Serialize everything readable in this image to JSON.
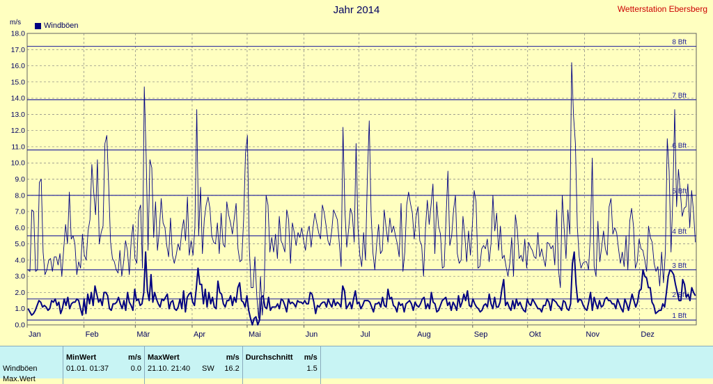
{
  "title": "Jahr 2014",
  "station": "Wetterstation Ebersberg",
  "unit_label": "m/s",
  "legend_label": "Windböen",
  "colors": {
    "background": "#ffffc0",
    "line": "#000080",
    "grid": "#808080",
    "text": "#000060",
    "station": "#cc0000",
    "stats_bg": "#c8f4f4"
  },
  "stats": {
    "headers": {
      "min": "MinWert",
      "min_unit": "m/s",
      "max": "MaxWert",
      "max_unit": "m/s",
      "avg": "Durchschnitt",
      "avg_unit": "m/s"
    },
    "rows": [
      {
        "label": "Windböen",
        "min_time": "01.01.  01:37",
        "min_val": "0.0",
        "max_time": "21.10.  21:40",
        "max_dir": "SW",
        "max_val": "16.2",
        "avg_val": "1.5"
      },
      {
        "label": "Max.Wert",
        "min_time": "",
        "min_val": "",
        "max_time": "",
        "max_dir": "",
        "max_val": "",
        "avg_val": ""
      }
    ]
  },
  "chart_data": {
    "type": "line",
    "title": "Jahr 2014",
    "ylabel": "m/s",
    "ylim": [
      0,
      18
    ],
    "yticks": [
      "0.0",
      "1.0",
      "2.0",
      "3.0",
      "4.0",
      "5.0",
      "6.0",
      "7.0",
      "8.0",
      "9.0",
      "10.0",
      "11.0",
      "12.0",
      "13.0",
      "14.0",
      "15.0",
      "16.0",
      "17.0",
      "18.0"
    ],
    "xlim": [
      0,
      365
    ],
    "x_ticks": [
      {
        "label": "Jan",
        "day": 0
      },
      {
        "label": "Feb",
        "day": 31
      },
      {
        "label": "Mär",
        "day": 59
      },
      {
        "label": "Apr",
        "day": 90
      },
      {
        "label": "Mai",
        "day": 120
      },
      {
        "label": "Jun",
        "day": 151
      },
      {
        "label": "Jul",
        "day": 181
      },
      {
        "label": "Aug",
        "day": 212
      },
      {
        "label": "Sep",
        "day": 243
      },
      {
        "label": "Okt",
        "day": 273
      },
      {
        "label": "Nov",
        "day": 304
      },
      {
        "label": "Dez",
        "day": 334
      }
    ],
    "grid": true,
    "beaufort": [
      {
        "label": "1 Bft",
        "value": 0.3
      },
      {
        "label": "2 Bft",
        "value": 1.6
      },
      {
        "label": "3 Bft",
        "value": 3.4
      },
      {
        "label": "4 Bft",
        "value": 5.5
      },
      {
        "label": "5 Bft",
        "value": 8.0
      },
      {
        "label": "6 Bft",
        "value": 10.8
      },
      {
        "label": "7 Bft",
        "value": 13.9
      },
      {
        "label": "8 Bft",
        "value": 17.2
      }
    ],
    "series": [
      {
        "name": "Windböen",
        "type": "daily_max",
        "values": [
          3.4,
          3.3,
          7.1,
          7.0,
          3.3,
          3.4,
          8.8,
          9.0,
          4.5,
          3.1,
          3.4,
          4.0,
          4.1,
          3.3,
          4.2,
          4.2,
          3.7,
          4.4,
          3.0,
          4.7,
          6.2,
          5.0,
          8.2,
          5.3,
          5.5,
          5.0,
          3.1,
          3.9,
          3.5,
          5.6,
          4.3,
          4.0,
          5.8,
          6.5,
          9.9,
          8.2,
          6.8,
          10.2,
          5.0,
          5.7,
          6.1,
          11.2,
          11.7,
          8.6,
          5.1,
          4.1,
          3.9,
          3.4,
          3.2,
          4.6,
          3.0,
          3.9,
          5.2,
          4.6,
          3.1,
          5.2,
          6.2,
          4.1,
          3.8,
          7.0,
          7.4,
          3.5,
          14.7,
          10.4,
          4.6,
          10.2,
          9.7,
          5.4,
          7.6,
          4.6,
          5.8,
          7.8,
          6.3,
          6.0,
          4.9,
          4.2,
          6.6,
          4.3,
          3.8,
          4.3,
          5.0,
          4.6,
          5.8,
          6.5,
          5.2,
          7.9,
          4.3,
          5.2,
          4.3,
          6.0,
          13.3,
          5.5,
          8.5,
          4.4,
          6.5,
          7.4,
          7.9,
          7.2,
          5.5,
          5.1,
          5.0,
          6.3,
          4.4,
          6.9,
          5.0,
          4.8,
          7.6,
          6.8,
          6.3,
          5.6,
          6.6,
          7.5,
          4.7,
          3.9,
          4.0,
          6.5,
          10.6,
          11.7,
          4.8,
          2.3,
          2.3,
          4.2,
          1.8,
          0.4,
          3.0,
          0.6,
          2.3,
          8.0,
          7.4,
          4.5,
          5.4,
          4.5,
          5.6,
          4.1,
          6.7,
          5.2,
          4.9,
          4.5,
          7.1,
          6.5,
          3.8,
          6.3,
          5.7,
          4.9,
          5.7,
          5.4,
          6.0,
          5.2,
          4.6,
          5.7,
          6.1,
          4.8,
          6.0,
          6.9,
          6.3,
          5.7,
          5.3,
          7.4,
          6.9,
          6.1,
          5.2,
          4.9,
          5.8,
          7.1,
          6.8,
          6.5,
          5.1,
          3.6,
          12.2,
          7.1,
          4.8,
          5.9,
          7.2,
          6.8,
          5.1,
          11.2,
          6.0,
          4.3,
          3.6,
          5.7,
          4.0,
          9.1,
          12.6,
          6.8,
          4.4,
          3.4,
          5.0,
          6.2,
          4.4,
          4.6,
          7.1,
          6.0,
          5.1,
          6.6,
          5.7,
          6.1,
          5.5,
          5.0,
          4.2,
          7.5,
          3.3,
          4.5,
          7.4,
          8.2,
          7.5,
          6.9,
          5.3,
          6.7,
          7.3,
          5.2,
          4.9,
          3.0,
          5.9,
          7.7,
          6.2,
          7.4,
          8.7,
          4.4,
          7.6,
          6.1,
          5.6,
          3.5,
          3.6,
          6.6,
          9.5,
          4.9,
          5.5,
          7.1,
          8.0,
          4.4,
          3.8,
          4.0,
          6.7,
          5.5,
          3.9,
          5.8,
          4.3,
          6.1,
          8.3,
          7.6,
          3.5,
          3.6,
          4.7,
          4.9,
          4.7,
          5.3,
          3.9,
          5.0,
          8.0,
          5.8,
          6.9,
          4.6,
          6.1,
          4.1,
          4.3,
          3.6,
          3.0,
          3.8,
          5.4,
          3.0,
          6.8,
          5.9,
          4.1,
          4.3,
          3.9,
          5.3,
          3.5,
          5.1,
          4.8,
          4.6,
          4.2,
          4.1,
          5.7,
          4.2,
          4.7,
          4.1,
          3.6,
          5.1,
          5.0,
          4.7,
          4.9,
          3.7,
          7.1,
          3.4,
          2.3,
          8.0,
          6.0,
          4.1,
          7.1,
          5.6,
          16.2,
          12.9,
          11.2,
          6.1,
          4.2,
          3.5,
          3.8,
          3.9,
          3.9,
          3.4,
          5.5,
          10.3,
          3.6,
          3.0,
          6.4,
          3.9,
          4.8,
          5.8,
          4.7,
          4.3,
          7.3,
          7.8,
          5.6,
          6.0,
          5.7,
          4.7,
          3.8,
          4.5,
          3.6,
          5.5,
          3.4,
          6.4,
          7.2,
          6.1,
          3.5,
          3.9,
          5.3,
          4.7,
          4.6,
          4.0,
          3.3,
          6.1,
          5.4,
          5.1,
          3.8,
          3.3,
          3.6,
          2.4,
          4.5,
          2.6,
          4.5,
          11.5,
          9.5,
          4.5,
          8.0,
          13.3,
          7.3,
          9.6,
          8.2,
          6.7,
          7.2,
          7.3,
          8.7,
          6.0,
          8.3,
          7.0,
          5.1
        ]
      },
      {
        "name": "Windböen",
        "type": "daily_mean",
        "values": [
          1.0,
          0.8,
          0.6,
          0.7,
          0.9,
          1.2,
          1.5,
          1.4,
          1.1,
          1.2,
          1.1,
          0.9,
          1.0,
          1.5,
          1.4,
          1.6,
          1.2,
          1.4,
          0.7,
          1.0,
          1.6,
          1.2,
          1.7,
          1.0,
          1.3,
          1.4,
          1.4,
          1.6,
          1.5,
          1.0,
          0.6,
          1.6,
          0.7,
          1.9,
          1.3,
          2.0,
          1.2,
          2.4,
          1.9,
          1.4,
          1.6,
          1.2,
          2.0,
          2.0,
          1.8,
          1.0,
          0.9,
          1.3,
          1.3,
          1.4,
          1.7,
          1.3,
          1.0,
          1.5,
          0.9,
          2.0,
          1.4,
          1.2,
          0.9,
          2.2,
          1.5,
          1.6,
          1.2,
          1.3,
          2.0,
          4.5,
          2.1,
          1.5,
          3.1,
          1.4,
          2.0,
          1.6,
          1.3,
          1.1,
          1.6,
          1.5,
          1.7,
          1.9,
          1.0,
          1.4,
          1.5,
          1.0,
          0.9,
          1.1,
          1.6,
          1.0,
          2.1,
          0.8,
          1.7,
          1.9,
          2.0,
          1.4,
          1.2,
          2.2,
          3.5,
          2.5,
          2.5,
          1.3,
          2.2,
          1.1,
          2.0,
          1.3,
          1.7,
          1.1,
          1.0,
          2.7,
          2.0,
          1.9,
          1.3,
          1.1,
          1.5,
          1.5,
          1.8,
          1.2,
          1.7,
          1.4,
          2.3,
          2.6,
          1.5,
          1.4,
          1.1,
          1.8,
          0.9,
          0.4,
          0.0,
          0.4,
          0.5,
          0.0,
          0.3,
          1.7,
          1.8,
          1.1,
          1.0,
          1.7,
          0.9,
          1.1,
          1.1,
          1.1,
          1.3,
          1.0,
          1.6,
          1.5,
          1.2,
          0.8,
          1.6,
          1.3,
          1.4,
          1.3,
          1.1,
          1.5,
          1.4,
          1.4,
          1.3,
          1.5,
          1.3,
          1.3,
          2.0,
          1.9,
          1.4,
          0.7,
          1.2,
          1.1,
          1.3,
          1.4,
          1.4,
          1.1,
          1.6,
          1.3,
          1.1,
          1.6,
          1.2,
          1.4,
          1.3,
          1.1,
          2.4,
          2.1,
          1.0,
          1.2,
          1.4,
          1.0,
          1.6,
          2.1,
          1.3,
          1.4,
          1.0,
          1.2,
          1.5,
          1.5,
          1.5,
          1.4,
          1.1,
          0.8,
          1.3,
          1.3,
          1.4,
          1.1,
          1.7,
          1.2,
          1.1,
          2.2,
          1.6,
          1.7,
          1.2,
          1.1,
          0.8,
          1.4,
          1.2,
          1.3,
          0.8,
          1.3,
          1.4,
          1.5,
          1.3,
          0.9,
          1.4,
          1.2,
          1.1,
          1.3,
          1.6,
          1.7,
          1.0,
          1.3,
          1.0,
          2.0,
          1.4,
          1.3,
          0.8,
          0.9,
          1.2,
          1.5,
          1.6,
          1.7,
          1.2,
          1.4,
          0.9,
          1.4,
          1.2,
          0.9,
          1.8,
          1.1,
          1.4,
          1.9,
          1.5,
          2.1,
          1.2,
          1.1,
          1.6,
          1.3,
          1.1,
          1.0,
          0.8,
          0.9,
          1.2,
          1.3,
          1.1,
          1.9,
          1.3,
          1.0,
          1.7,
          1.1,
          1.1,
          1.4,
          2.2,
          2.8,
          1.2,
          1.4,
          1.1,
          0.9,
          1.5,
          1.0,
          1.6,
          1.2,
          1.4,
          1.1,
          0.9,
          0.8,
          1.6,
          1.3,
          1.2,
          1.6,
          1.4,
          1.2,
          1.0,
          1.0,
          0.8,
          1.2,
          1.2,
          1.6,
          1.4,
          0.9,
          1.6,
          1.5,
          1.4,
          1.2,
          1.1,
          0.9,
          1.5,
          1.4,
          1.0,
          0.9,
          1.3,
          3.8,
          4.5,
          2.5,
          1.4,
          1.6,
          1.5,
          1.2,
          1.0,
          0.9,
          1.4,
          2.0,
          0.9,
          1.7,
          1.3,
          1.0,
          1.5,
          1.1,
          1.2,
          1.6,
          1.7,
          1.5,
          1.5,
          1.3,
          1.3,
          1.0,
          1.6,
          1.3,
          1.0,
          0.8,
          1.6,
          1.3,
          0.9,
          1.4,
          1.9,
          1.5,
          1.1,
          1.4,
          2.1,
          2.2,
          3.4,
          3.0,
          2.9,
          2.3,
          2.3,
          1.4,
          1.2,
          0.7,
          0.8,
          0.9,
          0.9,
          1.3,
          1.1,
          2.0,
          3.0,
          3.4,
          3.3,
          3.1,
          2.5,
          2.0,
          1.5,
          1.5,
          2.8,
          2.5,
          1.7,
          1.9,
          1.5,
          2.3,
          2.0,
          1.8
        ]
      }
    ]
  }
}
